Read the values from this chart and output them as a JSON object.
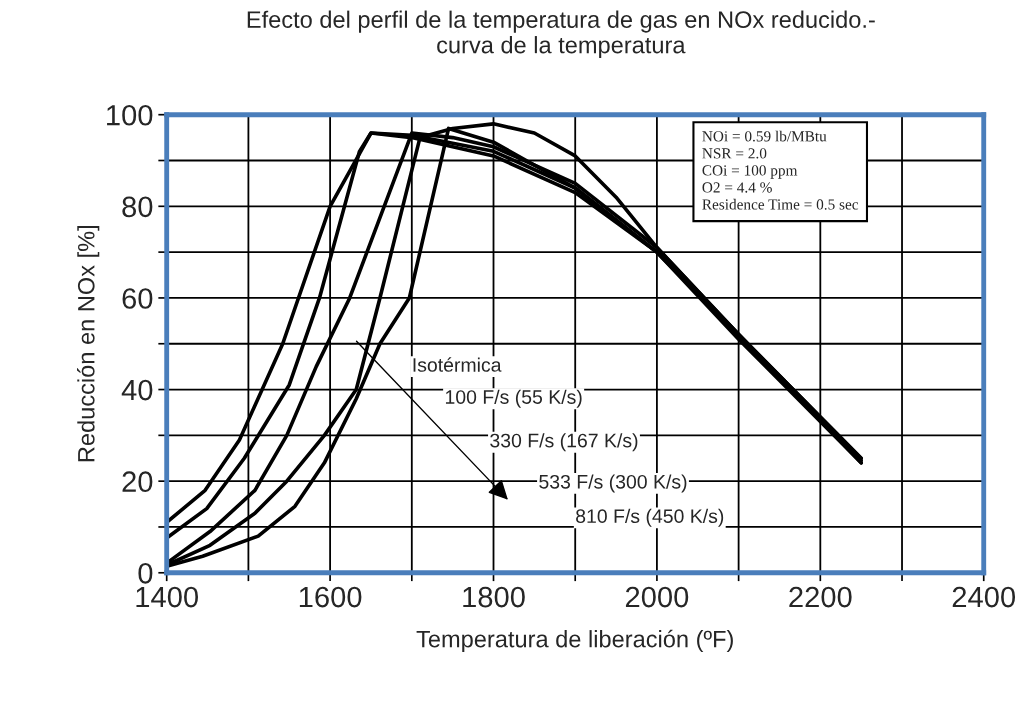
{
  "chart_data": {
    "type": "line",
    "title": "Efecto del perfil de la temperatura de gas en NOx reducido.-\ncurva de la temperatura",
    "xlabel": "Temperatura de liberación (ºF)",
    "ylabel": "Reducción en NOx [%]",
    "series": [
      {
        "color": "#000000",
        "x": [
          1400,
          1447,
          1489,
          1542,
          1600,
          1650,
          1700,
          1800,
          1900,
          2000,
          2100,
          2250
        ],
        "values": [
          11,
          18,
          29,
          50,
          80,
          96,
          95.5,
          92,
          84,
          70,
          52,
          24
        ]
      },
      {
        "color": "#000000",
        "x": [
          1400,
          1449,
          1495,
          1550,
          1587,
          1636,
          1650,
          1700,
          1800,
          1900,
          2000,
          2100,
          2250
        ],
        "values": [
          7.6,
          14,
          25,
          41,
          60,
          92,
          96,
          95,
          91,
          83,
          70,
          52,
          24.5
        ]
      },
      {
        "color": "#000000",
        "x": [
          1400,
          1453,
          1508,
          1547,
          1583,
          1624,
          1700,
          1750,
          1800,
          1900,
          2000,
          2100,
          2250
        ],
        "values": [
          2.1,
          9,
          18,
          30,
          45,
          60,
          96,
          95,
          93,
          85,
          71,
          52,
          25
        ]
      },
      {
        "color": "#000000",
        "x": [
          1400,
          1453,
          1508,
          1547,
          1593,
          1632,
          1661,
          1710,
          1750,
          1800,
          1850,
          1900,
          1950,
          2000,
          2100,
          2250
        ],
        "values": [
          1.7,
          6,
          13,
          20,
          30,
          40,
          60,
          95,
          97,
          98,
          96,
          91,
          82,
          71,
          52,
          25
        ]
      },
      {
        "color": "#000000",
        "x": [
          1400,
          1444,
          1512,
          1557,
          1593,
          1632,
          1661,
          1697,
          1745,
          1800,
          1900,
          2000,
          2100,
          2250
        ],
        "values": [
          1.4,
          3.6,
          8,
          14.5,
          24,
          38,
          50,
          60,
          97,
          94,
          84,
          70,
          51,
          24
        ]
      }
    ],
    "xlim": [
      1400,
      2400
    ],
    "ylim": [
      0,
      100
    ],
    "xticks": [
      1400,
      {
        "value": 1500,
        "label": null
      },
      1600,
      {
        "value": 1700,
        "label": null
      },
      1800,
      {
        "value": 1900,
        "label": null
      },
      2000,
      {
        "value": 2100,
        "label": null
      },
      2200,
      {
        "value": 2300,
        "label": null
      },
      2400
    ],
    "yticks": [
      0,
      {
        "value": 10,
        "label": null
      },
      20,
      {
        "value": 30,
        "label": null
      },
      40,
      {
        "value": 50,
        "label": null
      },
      60,
      {
        "value": 70,
        "label": null
      },
      80,
      {
        "value": 90,
        "label": null
      },
      100
    ],
    "grid": true,
    "legend": false,
    "marker": "none",
    "line_style": "solid",
    "annotations": [
      "NOi = 0.59 lb/MBtu\nNSR = 2.0\nCOi = 100 ppm\nO2 = 4.4 %\nResidence Time = 0.5 sec",
      "Isotérmica",
      "100 F/s (55 K/s)",
      "330 F/s (167 K/s)",
      "533 F/s (300 K/s)",
      "810 F/s (450 K/s)"
    ]
  }
}
